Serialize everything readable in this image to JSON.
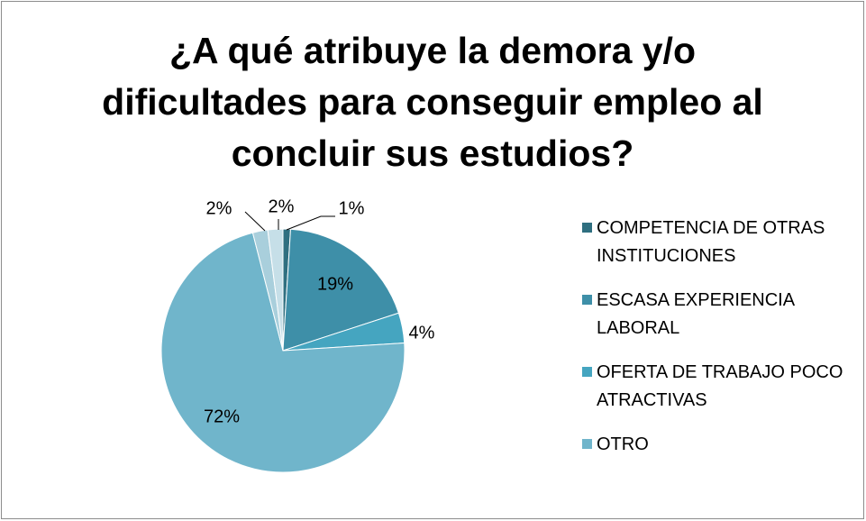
{
  "chart_data": {
    "type": "pie",
    "title": "¿A qué atribuye la demora y/o\ndificultades para conseguir empleo al\nconcluir sus estudios?",
    "categories": [
      "COMPETENCIA DE OTRAS INSTITUCIONES",
      "ESCASA EXPERIENCIA LABORAL",
      "OFERTA DE TRABAJO POCO ATRACTIVAS",
      "OTRO",
      null,
      null
    ],
    "values": [
      1,
      19,
      4,
      72,
      2,
      2
    ],
    "value_labels": [
      "1%",
      "19%",
      "4%",
      "72%",
      "2%",
      "2%"
    ],
    "colors": [
      "#2f6f80",
      "#3e8fa8",
      "#45a5c0",
      "#70b5cb",
      "#a9cfdc",
      "#c6dfe8"
    ],
    "legend": "right"
  }
}
